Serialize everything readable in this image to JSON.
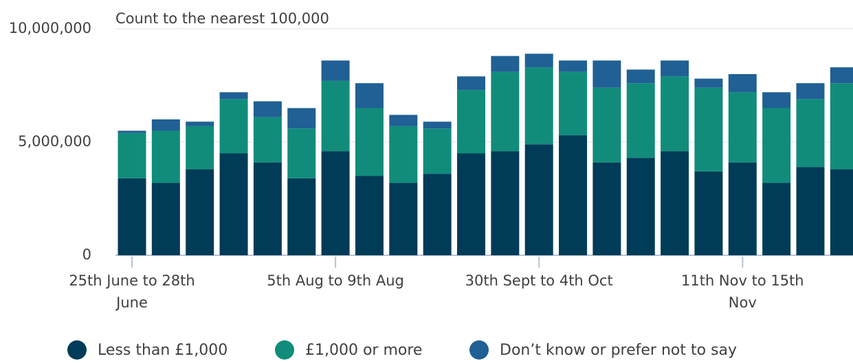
{
  "chart_data": {
    "type": "bar",
    "stacked": true,
    "subtitle": "Count to the nearest 100,000",
    "categories": [
      "25th June to 28th June",
      null,
      null,
      null,
      null,
      null,
      "5th Aug to 9th Aug",
      null,
      null,
      null,
      null,
      null,
      "30th Sept to 4th Oct",
      null,
      null,
      null,
      null,
      null,
      "11th Nov to 15th Nov",
      null,
      null,
      null
    ],
    "series": [
      {
        "name": "Less than £1,000",
        "color": "#003c57",
        "values": [
          3400000,
          3200000,
          3800000,
          4500000,
          4100000,
          3400000,
          4600000,
          3500000,
          3200000,
          3600000,
          4500000,
          4600000,
          4900000,
          5300000,
          4100000,
          4300000,
          4600000,
          3700000,
          4100000,
          3200000,
          3900000,
          3800000
        ]
      },
      {
        "name": "£1,000 or more",
        "color": "#118c7b",
        "values": [
          2000000,
          2300000,
          1900000,
          2400000,
          2000000,
          2200000,
          3100000,
          3000000,
          2500000,
          2000000,
          2800000,
          3500000,
          3400000,
          2800000,
          3300000,
          3300000,
          3300000,
          3700000,
          3100000,
          3300000,
          3000000,
          3800000
        ]
      },
      {
        "name": "Don’t know or prefer not to say",
        "color": "#206095",
        "values": [
          100000,
          500000,
          200000,
          300000,
          700000,
          900000,
          900000,
          1100000,
          500000,
          300000,
          600000,
          700000,
          600000,
          500000,
          1200000,
          600000,
          700000,
          400000,
          800000,
          700000,
          700000,
          700000
        ]
      }
    ],
    "ylim": [
      0,
      10000000
    ],
    "yticks": [
      0,
      {
        "value": 5000000,
        "label": "5,000,000"
      },
      {
        "value": 10000000,
        "label": "10,000,000"
      }
    ],
    "grid": true
  }
}
